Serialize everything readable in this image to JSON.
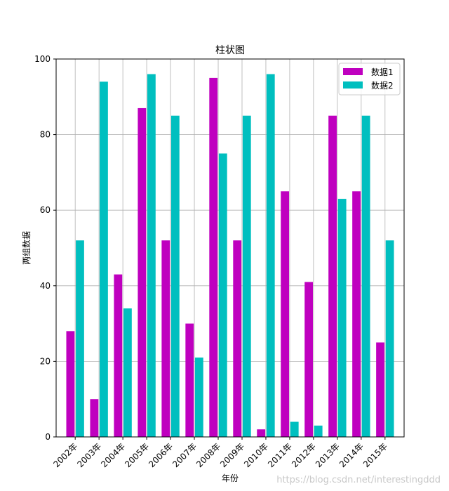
{
  "chart_data": {
    "type": "bar",
    "title": "柱状图",
    "xlabel": "年份",
    "ylabel": "两组数据",
    "categories": [
      "2002年",
      "2003年",
      "2004年",
      "2005年",
      "2006年",
      "2007年",
      "2008年",
      "2009年",
      "2010年",
      "2011年",
      "2012年",
      "2013年",
      "2014年",
      "2015年"
    ],
    "series": [
      {
        "name": "数据1",
        "color": "#bf00bf",
        "values": [
          28,
          10,
          43,
          87,
          52,
          30,
          95,
          52,
          2,
          65,
          41,
          85,
          65,
          25
        ]
      },
      {
        "name": "数据2",
        "color": "#00bfbf",
        "values": [
          52,
          94,
          34,
          96,
          85,
          21,
          75,
          85,
          96,
          4,
          3,
          63,
          85,
          52
        ]
      }
    ],
    "ylim": [
      0,
      100
    ],
    "yticks": [
      0,
      20,
      40,
      60,
      80,
      100
    ],
    "grid": true,
    "legend_position": "top-right"
  },
  "watermark": "https://blog.csdn.net/interestingddd"
}
